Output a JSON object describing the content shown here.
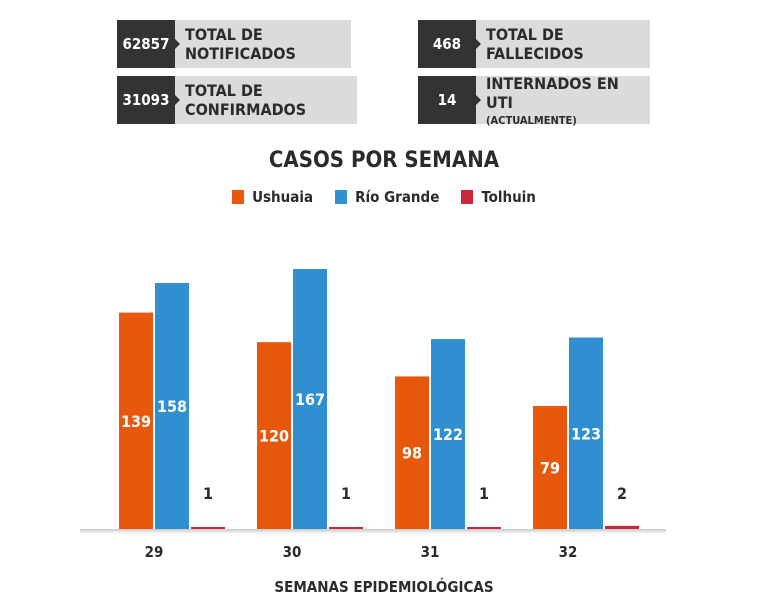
{
  "stats": [
    {
      "value": "62857",
      "label": "TOTAL DE NOTIFICADOS",
      "sub": ""
    },
    {
      "value": "31093",
      "label": "TOTAL DE CONFIRMADOS",
      "sub": ""
    },
    {
      "value": "468",
      "label": "TOTAL DE FALLECIDOS",
      "sub": ""
    },
    {
      "value": "14",
      "label": "INTERNADOS EN UTI",
      "sub": "(ACTUALMENTE)"
    }
  ],
  "chart_data": {
    "type": "bar",
    "title": "CASOS POR SEMANA",
    "xlabel": "SEMANAS EPIDEMIOLÓGICAS",
    "ylabel": "",
    "categories": [
      "29",
      "30",
      "31",
      "32"
    ],
    "series": [
      {
        "name": "Ushuaia",
        "values": [
          139,
          120,
          98,
          79
        ],
        "color": "#e8580c"
      },
      {
        "name": "Río Grande",
        "values": [
          158,
          167,
          122,
          123
        ],
        "color": "#2f8fd0"
      },
      {
        "name": "Tolhuin",
        "values": [
          1,
          1,
          1,
          2
        ],
        "color": "#c8283a"
      }
    ],
    "ylim": [
      0,
      175
    ],
    "grid": false,
    "legend": "top-center"
  }
}
